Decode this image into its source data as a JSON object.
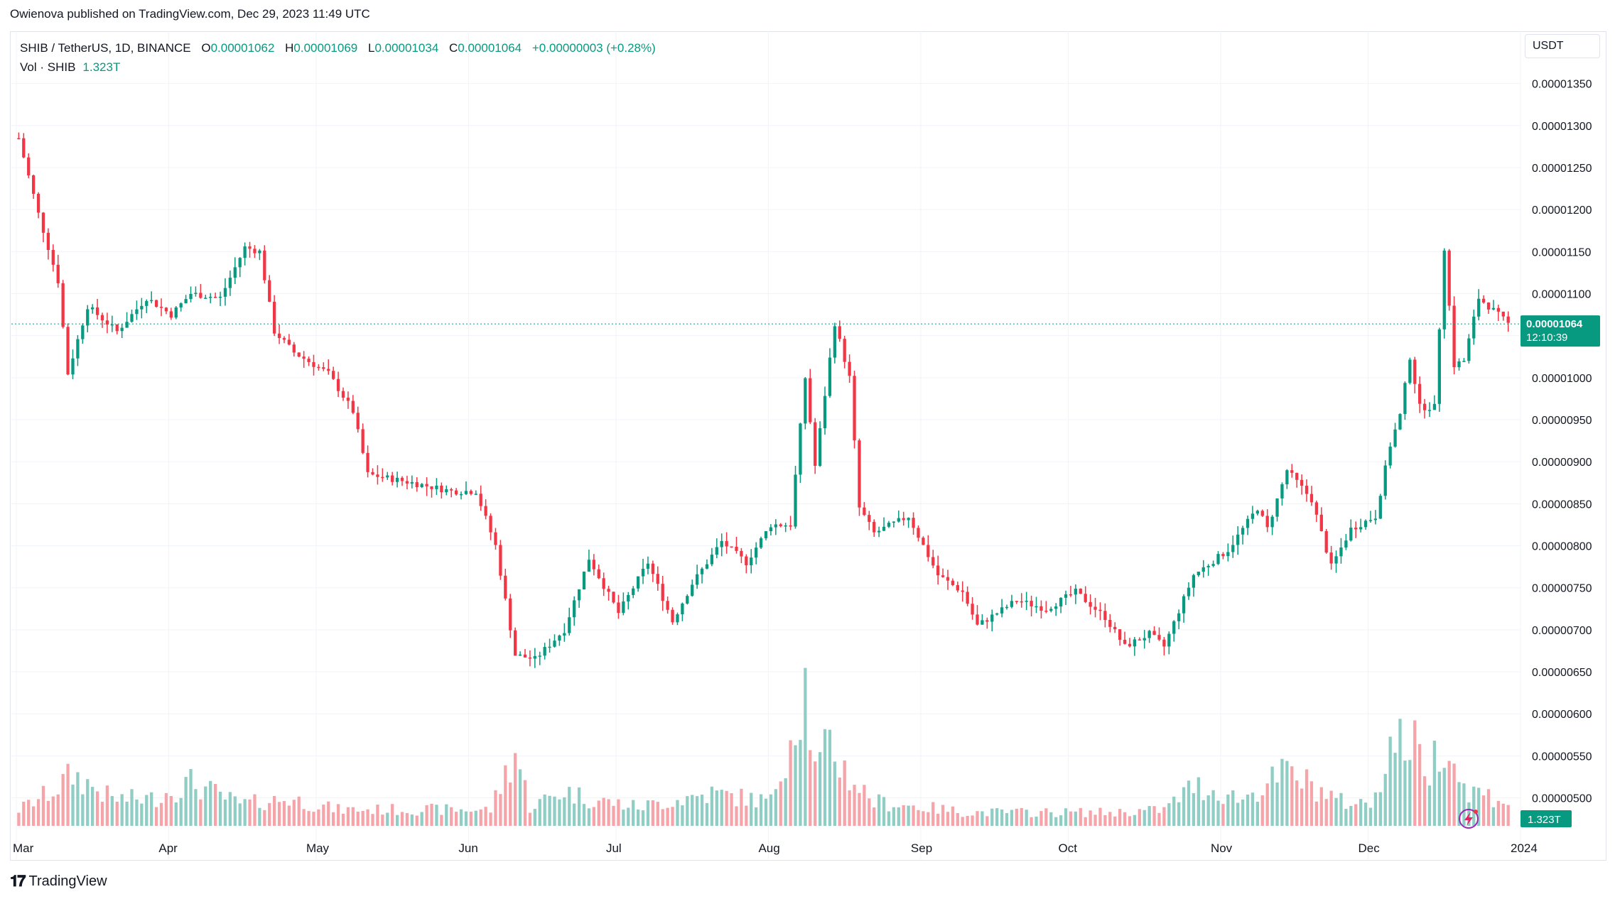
{
  "publish_line": "Owienova published on TradingView.com, Dec 29, 2023 11:49 UTC",
  "legend": {
    "symbol": "SHIB / TetherUS, 1D, BINANCE",
    "open_label": "O",
    "open": "0.00001062",
    "high_label": "H",
    "high": "0.00001069",
    "low_label": "L",
    "low": "0.00001034",
    "close_label": "C",
    "close": "0.00001064",
    "change": "+0.00000003 (+0.28%)",
    "volume_label": "Vol · SHIB",
    "volume": "1.323T"
  },
  "currency_button": "USDT",
  "current_price_label": "0.00001064",
  "countdown": "12:10:39",
  "volume_badge": "1.323T",
  "footer_brand": "TradingView",
  "colors": {
    "up": "#089981",
    "down": "#f23645",
    "vol_up": "#8fcdc5",
    "vol_down": "#f5a5aa",
    "grid": "#f0f3fa",
    "axis_text": "#131722"
  },
  "chart_data": {
    "type": "candlestick",
    "x_axis_labels": [
      "Mar",
      "Apr",
      "May",
      "Jun",
      "Jul",
      "Aug",
      "Sep",
      "Oct",
      "Nov",
      "Dec",
      "2024"
    ],
    "y_tick_labels": [
      "0.00001350",
      "0.00001300",
      "0.00001250",
      "0.00001200",
      "0.00001150",
      "0.00001100",
      "0.00001050",
      "0.00001000",
      "0.00000950",
      "0.00000900",
      "0.00000850",
      "0.00000800",
      "0.00000750",
      "0.00000700",
      "0.00000650",
      "0.00000600",
      "0.00000550",
      "0.00000500"
    ],
    "y_ticks": [
      1.35e-05,
      1.3e-05,
      1.25e-05,
      1.2e-05,
      1.15e-05,
      1.1e-05,
      1.05e-05,
      1e-05,
      9.5e-06,
      9e-06,
      8.5e-06,
      8e-06,
      7.5e-06,
      7e-06,
      6.5e-06,
      6e-06,
      5.5e-06,
      5e-06
    ],
    "ylim": [
      4.65e-06,
      1.397e-05
    ],
    "current_price": 1.064e-05,
    "anchors": [
      [
        "2023-03-01",
        12.85
      ],
      [
        "2023-03-05",
        11.95
      ],
      [
        "2023-03-09",
        11.15
      ],
      [
        "2023-03-11",
        10.05
      ],
      [
        "2023-03-15",
        10.85
      ],
      [
        "2023-03-21",
        10.55
      ],
      [
        "2023-03-27",
        10.95
      ],
      [
        "2023-04-01",
        10.75
      ],
      [
        "2023-04-05",
        11.0
      ],
      [
        "2023-04-11",
        10.95
      ],
      [
        "2023-04-16",
        11.55
      ],
      [
        "2023-04-19",
        11.5
      ],
      [
        "2023-04-22",
        10.55
      ],
      [
        "2023-04-26",
        10.3
      ],
      [
        "2023-05-03",
        10.05
      ],
      [
        "2023-05-08",
        9.6
      ],
      [
        "2023-05-11",
        8.85
      ],
      [
        "2023-05-20",
        8.75
      ],
      [
        "2023-05-28",
        8.65
      ],
      [
        "2023-06-02",
        8.65
      ],
      [
        "2023-06-06",
        8.0
      ],
      [
        "2023-06-10",
        6.7
      ],
      [
        "2023-06-14",
        6.65
      ],
      [
        "2023-06-20",
        7.0
      ],
      [
        "2023-06-25",
        7.85
      ],
      [
        "2023-07-01",
        7.2
      ],
      [
        "2023-07-07",
        7.8
      ],
      [
        "2023-07-12",
        7.1
      ],
      [
        "2023-07-16",
        7.55
      ],
      [
        "2023-07-22",
        8.05
      ],
      [
        "2023-07-27",
        7.8
      ],
      [
        "2023-08-01",
        8.25
      ],
      [
        "2023-08-05",
        8.25
      ],
      [
        "2023-08-08",
        10.0
      ],
      [
        "2023-08-10",
        8.95
      ],
      [
        "2023-08-14",
        10.65
      ],
      [
        "2023-08-17",
        10.0
      ],
      [
        "2023-08-19",
        8.45
      ],
      [
        "2023-08-22",
        8.15
      ],
      [
        "2023-08-29",
        8.35
      ],
      [
        "2023-09-04",
        7.65
      ],
      [
        "2023-09-09",
        7.45
      ],
      [
        "2023-09-12",
        7.05
      ],
      [
        "2023-09-20",
        7.35
      ],
      [
        "2023-09-26",
        7.25
      ],
      [
        "2023-10-02",
        7.45
      ],
      [
        "2023-10-08",
        7.15
      ],
      [
        "2023-10-12",
        6.8
      ],
      [
        "2023-10-17",
        6.95
      ],
      [
        "2023-10-20",
        6.8
      ],
      [
        "2023-10-26",
        7.65
      ],
      [
        "2023-11-02",
        7.95
      ],
      [
        "2023-11-08",
        8.45
      ],
      [
        "2023-11-10",
        8.2
      ],
      [
        "2023-11-14",
        8.9
      ],
      [
        "2023-11-19",
        8.55
      ],
      [
        "2023-11-23",
        7.75
      ],
      [
        "2023-11-27",
        8.2
      ],
      [
        "2023-12-02",
        8.35
      ],
      [
        "2023-12-05",
        9.2
      ],
      [
        "2023-12-07",
        9.55
      ],
      [
        "2023-12-09",
        10.25
      ],
      [
        "2023-12-11",
        9.65
      ],
      [
        "2023-12-14",
        9.65
      ],
      [
        "2023-12-16",
        11.55
      ],
      [
        "2023-12-18",
        10.15
      ],
      [
        "2023-12-20",
        10.2
      ],
      [
        "2023-12-23",
        10.95
      ],
      [
        "2023-12-26",
        10.8
      ],
      [
        "2023-12-29",
        10.64
      ]
    ],
    "volume_anchors": [
      [
        "2023-03-01",
        0.6
      ],
      [
        "2023-03-08",
        1.3
      ],
      [
        "2023-03-12",
        1.9
      ],
      [
        "2023-03-20",
        1.0
      ],
      [
        "2023-03-28",
        1.0
      ],
      [
        "2023-04-05",
        1.6
      ],
      [
        "2023-04-15",
        0.8
      ],
      [
        "2023-04-25",
        1.0
      ],
      [
        "2023-05-05",
        0.6
      ],
      [
        "2023-05-20",
        0.6
      ],
      [
        "2023-06-05",
        0.6
      ],
      [
        "2023-06-10",
        2.8
      ],
      [
        "2023-06-13",
        0.7
      ],
      [
        "2023-06-20",
        1.3
      ],
      [
        "2023-06-25",
        1.0
      ],
      [
        "2023-07-05",
        0.7
      ],
      [
        "2023-07-20",
        1.2
      ],
      [
        "2023-08-01",
        0.9
      ],
      [
        "2023-08-08",
        5.3
      ],
      [
        "2023-08-10",
        2.0
      ],
      [
        "2023-08-13",
        3.0
      ],
      [
        "2023-08-17",
        1.8
      ],
      [
        "2023-08-22",
        0.9
      ],
      [
        "2023-09-10",
        0.5
      ],
      [
        "2023-10-10",
        0.5
      ],
      [
        "2023-10-20",
        0.6
      ],
      [
        "2023-10-26",
        1.5
      ],
      [
        "2023-11-05",
        1.0
      ],
      [
        "2023-11-14",
        2.0
      ],
      [
        "2023-11-19",
        1.5
      ],
      [
        "2023-11-25",
        0.9
      ],
      [
        "2023-12-01",
        0.8
      ],
      [
        "2023-12-05",
        3.0
      ],
      [
        "2023-12-09",
        3.2
      ],
      [
        "2023-12-13",
        2.1
      ],
      [
        "2023-12-16",
        3.4
      ],
      [
        "2023-12-20",
        1.4
      ],
      [
        "2023-12-29",
        0.9
      ]
    ]
  }
}
